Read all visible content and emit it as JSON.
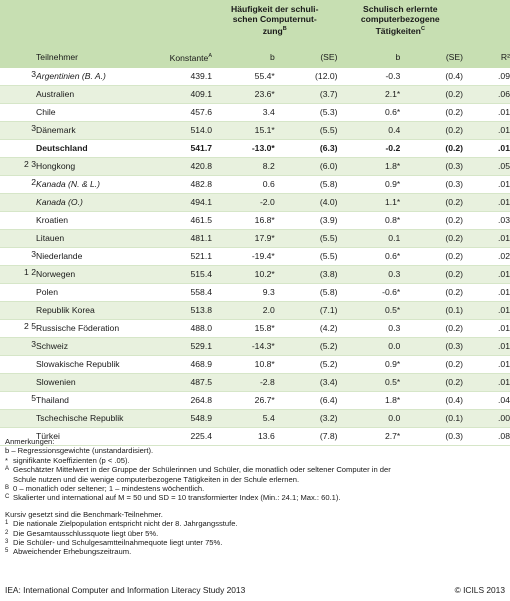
{
  "header": {
    "participant": "Teilnehmer",
    "constant": "Konstante",
    "constant_sup": "A",
    "group1_title": "Häufigkeit der schuli-schen Computernut-zung",
    "group1_l1": "Häufigkeit der schuli-",
    "group1_l2": "schen Computernut-",
    "group1_l3": "zung",
    "group1_sup": "B",
    "group2_l1": "Schulisch erlernte",
    "group2_l2": "computerbezogene",
    "group2_l3": "Tätigkeiten",
    "group2_sup": "C",
    "b": "b",
    "se": "(SE)",
    "r2": "R²"
  },
  "rows": [
    {
      "fn": "3",
      "name": "Argentinien (B. A.)",
      "italic": true,
      "bold": false,
      "k": "439.1",
      "b1": "55.4*",
      "se1": "(12.0)",
      "b2": "-0.3",
      "se2": "(0.4)",
      "r2": ".09"
    },
    {
      "fn": "",
      "name": "Australien",
      "italic": false,
      "bold": false,
      "k": "409.1",
      "b1": "23.6*",
      "se1": "(3.7)",
      "b2": "2.1*",
      "se2": "(0.2)",
      "r2": ".06"
    },
    {
      "fn": "",
      "name": "Chile",
      "italic": false,
      "bold": false,
      "k": "457.6",
      "b1": "3.4",
      "se1": "(5.3)",
      "b2": "0.6*",
      "se2": "(0.2)",
      "r2": ".01"
    },
    {
      "fn": "3",
      "name": "Dänemark",
      "italic": false,
      "bold": false,
      "k": "514.0",
      "b1": "15.1*",
      "se1": "(5.5)",
      "b2": "0.4",
      "se2": "(0.2)",
      "r2": ".01"
    },
    {
      "fn": "",
      "name": "Deutschland",
      "italic": false,
      "bold": true,
      "k": "541.7",
      "b1": "-13.0*",
      "se1": "(6.3)",
      "b2": "-0.2",
      "se2": "(0.2)",
      "r2": ".01"
    },
    {
      "fn": "2 3",
      "name": "Hongkong",
      "italic": false,
      "bold": false,
      "k": "420.8",
      "b1": "8.2",
      "se1": "(6.0)",
      "b2": "1.8*",
      "se2": "(0.3)",
      "r2": ".05"
    },
    {
      "fn": "2",
      "name": "Kanada (N. & L.)",
      "italic": true,
      "bold": false,
      "k": "482.8",
      "b1": "0.6",
      "se1": "(5.8)",
      "b2": "0.9*",
      "se2": "(0.3)",
      "r2": ".01"
    },
    {
      "fn": "",
      "name": "Kanada (O.)",
      "italic": true,
      "bold": false,
      "k": "494.1",
      "b1": "-2.0",
      "se1": "(4.0)",
      "b2": "1.1*",
      "se2": "(0.2)",
      "r2": ".01"
    },
    {
      "fn": "",
      "name": "Kroatien",
      "italic": false,
      "bold": false,
      "k": "461.5",
      "b1": "16.8*",
      "se1": "(3.9)",
      "b2": "0.8*",
      "se2": "(0.2)",
      "r2": ".03"
    },
    {
      "fn": "",
      "name": "Litauen",
      "italic": false,
      "bold": false,
      "k": "481.1",
      "b1": "17.9*",
      "se1": "(5.5)",
      "b2": "0.1",
      "se2": "(0.2)",
      "r2": ".01"
    },
    {
      "fn": "3",
      "name": "Niederlande",
      "italic": false,
      "bold": false,
      "k": "521.1",
      "b1": "-19.4*",
      "se1": "(5.5)",
      "b2": "0.6*",
      "se2": "(0.2)",
      "r2": ".02"
    },
    {
      "fn": "1 2",
      "name": "Norwegen",
      "italic": false,
      "bold": false,
      "k": "515.4",
      "b1": "10.2*",
      "se1": "(3.8)",
      "b2": "0.3",
      "se2": "(0.2)",
      "r2": ".01"
    },
    {
      "fn": "",
      "name": "Polen",
      "italic": false,
      "bold": false,
      "k": "558.4",
      "b1": "9.3",
      "se1": "(5.8)",
      "b2": "-0.6*",
      "se2": "(0.2)",
      "r2": ".01"
    },
    {
      "fn": "",
      "name": "Republik Korea",
      "italic": false,
      "bold": false,
      "k": "513.8",
      "b1": "2.0",
      "se1": "(7.1)",
      "b2": "0.5*",
      "se2": "(0.1)",
      "r2": ".01"
    },
    {
      "fn": "2 5",
      "name": "Russische Föderation",
      "italic": false,
      "bold": false,
      "k": "488.0",
      "b1": "15.8*",
      "se1": "(4.2)",
      "b2": "0.3",
      "se2": "(0.2)",
      "r2": ".01"
    },
    {
      "fn": "3",
      "name": "Schweiz",
      "italic": false,
      "bold": false,
      "k": "529.1",
      "b1": "-14.3*",
      "se1": "(5.2)",
      "b2": "0.0",
      "se2": "(0.3)",
      "r2": ".01"
    },
    {
      "fn": "",
      "name": "Slowakische Republik",
      "italic": false,
      "bold": false,
      "k": "468.9",
      "b1": "10.8*",
      "se1": "(5.2)",
      "b2": "0.9*",
      "se2": "(0.2)",
      "r2": ".01"
    },
    {
      "fn": "",
      "name": "Slowenien",
      "italic": false,
      "bold": false,
      "k": "487.5",
      "b1": "-2.8",
      "se1": "(3.4)",
      "b2": "0.5*",
      "se2": "(0.2)",
      "r2": ".01"
    },
    {
      "fn": "5",
      "name": "Thailand",
      "italic": false,
      "bold": false,
      "k": "264.8",
      "b1": "26.7*",
      "se1": "(6.4)",
      "b2": "1.8*",
      "se2": "(0.4)",
      "r2": ".04"
    },
    {
      "fn": "",
      "name": "Tschechische Republik",
      "italic": false,
      "bold": false,
      "k": "548.9",
      "b1": "5.4",
      "se1": "(3.2)",
      "b2": "0.0",
      "se2": "(0.1)",
      "r2": ".00"
    },
    {
      "fn": "",
      "name": "Türkei",
      "italic": false,
      "bold": false,
      "k": "225.4",
      "b1": "13.6",
      "se1": "(7.8)",
      "b2": "2.7*",
      "se2": "(0.3)",
      "r2": ".08"
    }
  ],
  "notes": {
    "heading": "Anmerkungen:",
    "b_note": "b – Regressionsgewichte (unstandardisiert).",
    "star_mark": "*",
    "star_note": "signifikante Koeffizienten (p < .05).",
    "a_mark": "A",
    "a_note_1": "Geschätzter Mittelwert in der Gruppe der Schülerinnen und Schüler, die monatlich oder seltener Computer in der",
    "a_note_2": "Schule nutzen und die wenige computerbezogene Tätigkeiten in der Schule erlernen.",
    "b_mark": "B",
    "b_mark_note": "0 – monatlich oder seltener; 1 – mindestens wöchentlich.",
    "c_mark": "C",
    "c_note": "Skalierter und international auf M = 50 und SD = 10 transformierter Index (Min.: 24.1; Max.: 60.1).",
    "italic_note": "Kursiv gesetzt sind die Benchmark-Teilnehmer.",
    "n1_mark": "1",
    "n1": "Die nationale Zielpopulation entspricht nicht der 8. Jahrgangsstufe.",
    "n2_mark": "2",
    "n2": "Die Gesamtausschlussquote liegt über 5%.",
    "n3_mark": "3",
    "n3": "Die Schüler- und Schulgesamtteilnahmequote liegt unter 75%.",
    "n5_mark": "5",
    "n5": "Abweichender Erhebungszeitraum."
  },
  "footer": {
    "source": "IEA: International Computer and Information Literacy Study 2013",
    "copyright": "© ICILS 2013"
  },
  "colors": {
    "header_band": "#c7dfb2",
    "row_shade": "#e8f1de",
    "row_rule": "#d6e6c8"
  }
}
